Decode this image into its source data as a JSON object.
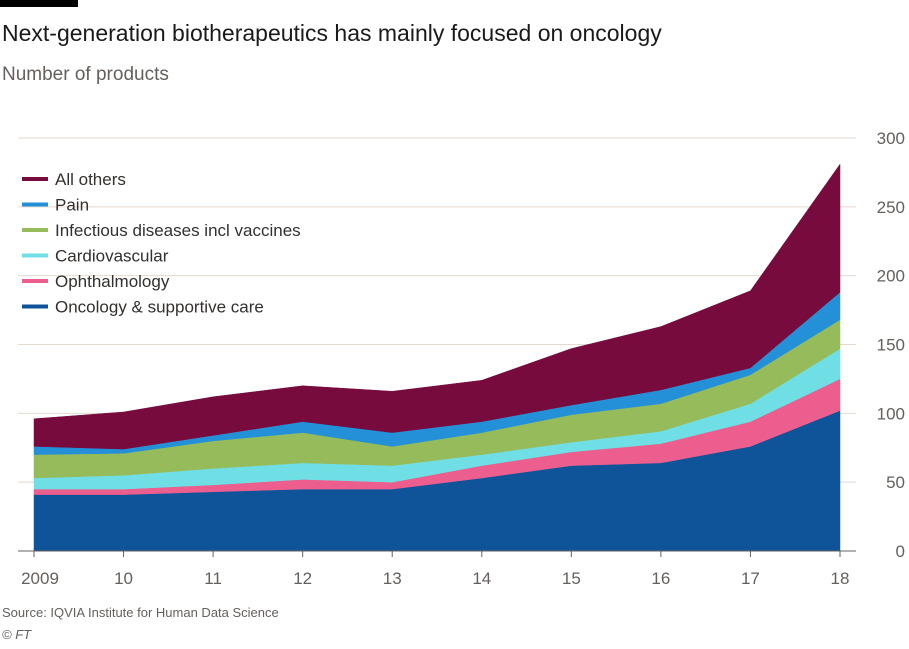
{
  "header": {
    "title": "Next-generation biotherapeutics has mainly focused on oncology",
    "subtitle": "Number of products"
  },
  "footer": {
    "source": "Source: IQVIA Institute for Human Data Science",
    "credit": "© FT"
  },
  "chart_data": {
    "type": "area",
    "stacked": true,
    "title": "Next-generation biotherapeutics has mainly focused on oncology",
    "subtitle": "Number of products",
    "x": [
      "2009",
      "10",
      "11",
      "12",
      "13",
      "14",
      "15",
      "16",
      "17",
      "18"
    ],
    "ylim": [
      0,
      300
    ],
    "yticks": [
      0,
      50,
      100,
      150,
      200,
      250,
      300
    ],
    "y_axis_position": "right",
    "grid": true,
    "legend_position": "top-left",
    "series": [
      {
        "name": "Oncology & supportive care",
        "color": "#0f5499",
        "values": [
          41,
          41,
          43,
          45,
          45,
          53,
          62,
          64,
          76,
          102
        ]
      },
      {
        "name": "Ophthalmology",
        "color": "#eb5e8d",
        "values": [
          4,
          4,
          5,
          7,
          5,
          9,
          10,
          14,
          18,
          23
        ]
      },
      {
        "name": "Cardiovascular",
        "color": "#6fdfe5",
        "values": [
          8,
          10,
          12,
          12,
          12,
          8,
          7,
          9,
          13,
          22
        ]
      },
      {
        "name": "Infectious diseases incl vaccines",
        "color": "#96bb5a",
        "values": [
          17,
          16,
          20,
          22,
          14,
          16,
          20,
          20,
          21,
          21
        ]
      },
      {
        "name": "Pain",
        "color": "#2490d8",
        "values": [
          6,
          3,
          4,
          8,
          10,
          8,
          7,
          10,
          5,
          20
        ]
      },
      {
        "name": "All others",
        "color": "#780b3e",
        "values": [
          20,
          27,
          28,
          26,
          30,
          30,
          41,
          46,
          56,
          93
        ]
      }
    ]
  }
}
